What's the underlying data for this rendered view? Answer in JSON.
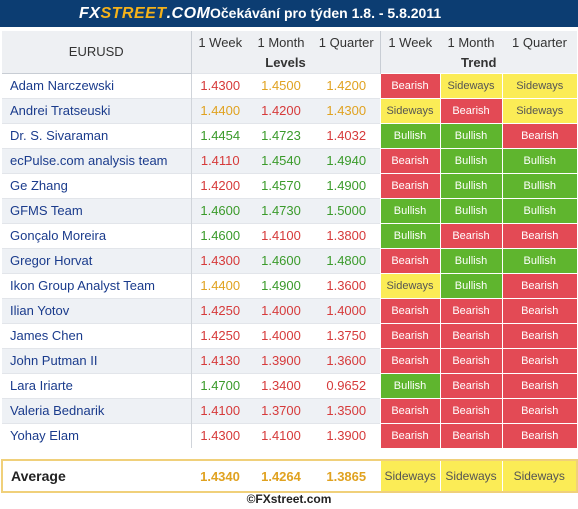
{
  "header": {
    "logo_fx": "FX",
    "logo_street": "STREET",
    "logo_dotcom": ".COM",
    "title": "Očekávání pro týden 1.8. - 5.8.2011"
  },
  "table": {
    "pair": "EURUSD",
    "columns": [
      "1 Week",
      "1 Month",
      "1 Quarter",
      "1 Week",
      "1 Month",
      "1 Quarter"
    ],
    "levels_label": "Levels",
    "trend_label": "Trend",
    "rows": [
      {
        "name": "Adam Narczewski",
        "levels": [
          "1.4300",
          "1.4500",
          "1.4200"
        ],
        "level_colors": [
          "red",
          "yellow",
          "yellow"
        ],
        "trends": [
          "Bearish",
          "Sideways",
          "Sideways"
        ]
      },
      {
        "name": "Andrei Tratseuski",
        "levels": [
          "1.4400",
          "1.4200",
          "1.4300"
        ],
        "level_colors": [
          "yellow",
          "red",
          "yellow"
        ],
        "trends": [
          "Sideways",
          "Bearish",
          "Sideways"
        ]
      },
      {
        "name": "Dr. S. Sivaraman",
        "levels": [
          "1.4454",
          "1.4723",
          "1.4032"
        ],
        "level_colors": [
          "green",
          "green",
          "red"
        ],
        "trends": [
          "Bullish",
          "Bullish",
          "Bearish"
        ]
      },
      {
        "name": "ecPulse.com analysis team",
        "levels": [
          "1.4110",
          "1.4540",
          "1.4940"
        ],
        "level_colors": [
          "red",
          "green",
          "green"
        ],
        "trends": [
          "Bearish",
          "Bullish",
          "Bullish"
        ]
      },
      {
        "name": "Ge Zhang",
        "levels": [
          "1.4200",
          "1.4570",
          "1.4900"
        ],
        "level_colors": [
          "red",
          "green",
          "green"
        ],
        "trends": [
          "Bearish",
          "Bullish",
          "Bullish"
        ]
      },
      {
        "name": "GFMS Team",
        "levels": [
          "1.4600",
          "1.4730",
          "1.5000"
        ],
        "level_colors": [
          "green",
          "green",
          "green"
        ],
        "trends": [
          "Bullish",
          "Bullish",
          "Bullish"
        ]
      },
      {
        "name": "Gonçalo Moreira",
        "levels": [
          "1.4600",
          "1.4100",
          "1.3800"
        ],
        "level_colors": [
          "green",
          "red",
          "red"
        ],
        "trends": [
          "Bullish",
          "Bearish",
          "Bearish"
        ]
      },
      {
        "name": "Gregor Horvat",
        "levels": [
          "1.4300",
          "1.4600",
          "1.4800"
        ],
        "level_colors": [
          "red",
          "green",
          "green"
        ],
        "trends": [
          "Bearish",
          "Bullish",
          "Bullish"
        ]
      },
      {
        "name": "Ikon Group Analyst Team",
        "levels": [
          "1.4400",
          "1.4900",
          "1.3600"
        ],
        "level_colors": [
          "yellow",
          "green",
          "red"
        ],
        "trends": [
          "Sideways",
          "Bullish",
          "Bearish"
        ]
      },
      {
        "name": "Ilian Yotov",
        "levels": [
          "1.4250",
          "1.4000",
          "1.4000"
        ],
        "level_colors": [
          "red",
          "red",
          "red"
        ],
        "trends": [
          "Bearish",
          "Bearish",
          "Bearish"
        ]
      },
      {
        "name": "James Chen",
        "levels": [
          "1.4250",
          "1.4000",
          "1.3750"
        ],
        "level_colors": [
          "red",
          "red",
          "red"
        ],
        "trends": [
          "Bearish",
          "Bearish",
          "Bearish"
        ]
      },
      {
        "name": "John Putman II",
        "levels": [
          "1.4130",
          "1.3900",
          "1.3600"
        ],
        "level_colors": [
          "red",
          "red",
          "red"
        ],
        "trends": [
          "Bearish",
          "Bearish",
          "Bearish"
        ]
      },
      {
        "name": "Lara Iriarte",
        "levels": [
          "1.4700",
          "1.3400",
          "0.9652"
        ],
        "level_colors": [
          "green",
          "red",
          "red"
        ],
        "trends": [
          "Bullish",
          "Bearish",
          "Bearish"
        ]
      },
      {
        "name": "Valeria Bednarik",
        "levels": [
          "1.4100",
          "1.3700",
          "1.3500"
        ],
        "level_colors": [
          "red",
          "red",
          "red"
        ],
        "trends": [
          "Bearish",
          "Bearish",
          "Bearish"
        ]
      },
      {
        "name": "Yohay Elam",
        "levels": [
          "1.4300",
          "1.4100",
          "1.3900"
        ],
        "level_colors": [
          "red",
          "red",
          "red"
        ],
        "trends": [
          "Bearish",
          "Bearish",
          "Bearish"
        ]
      }
    ],
    "average": {
      "label": "Average",
      "levels": [
        "1.4340",
        "1.4264",
        "1.3865"
      ],
      "trends": [
        "Sideways",
        "Sideways",
        "Sideways"
      ]
    }
  },
  "footer": {
    "copyright": "©FXstreet.com"
  },
  "colors": {
    "header_bg": "#0c3d72",
    "bearish": "#e34a55",
    "bullish": "#5fb52e",
    "sideways": "#fbec56",
    "level_red": "#d63a3a",
    "level_green": "#3a9a2a",
    "level_yellow": "#e0a220"
  }
}
